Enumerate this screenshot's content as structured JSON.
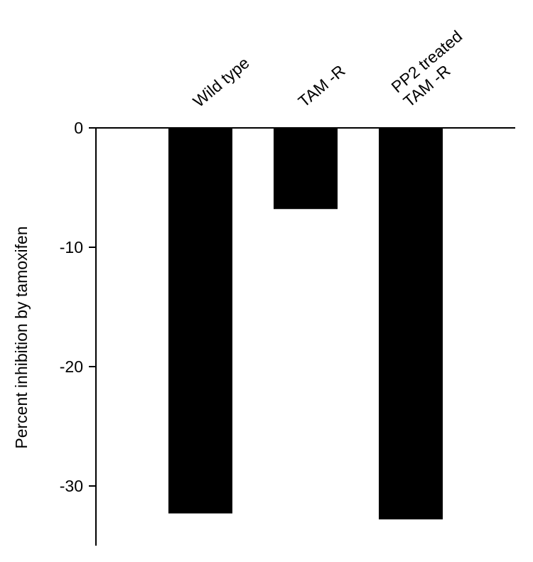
{
  "chart_data": {
    "type": "bar",
    "y_label": "Percent inhibition by tamoxifen",
    "categories": [
      "Wild type",
      "TAM -R",
      "PP2 treated\nTAM -R"
    ],
    "values": [
      -32.3,
      -6.8,
      -32.8
    ],
    "color": "#000000",
    "ylim": [
      -35,
      0
    ],
    "yticks": [
      0,
      -10,
      -20,
      -30
    ],
    "grid": false
  }
}
